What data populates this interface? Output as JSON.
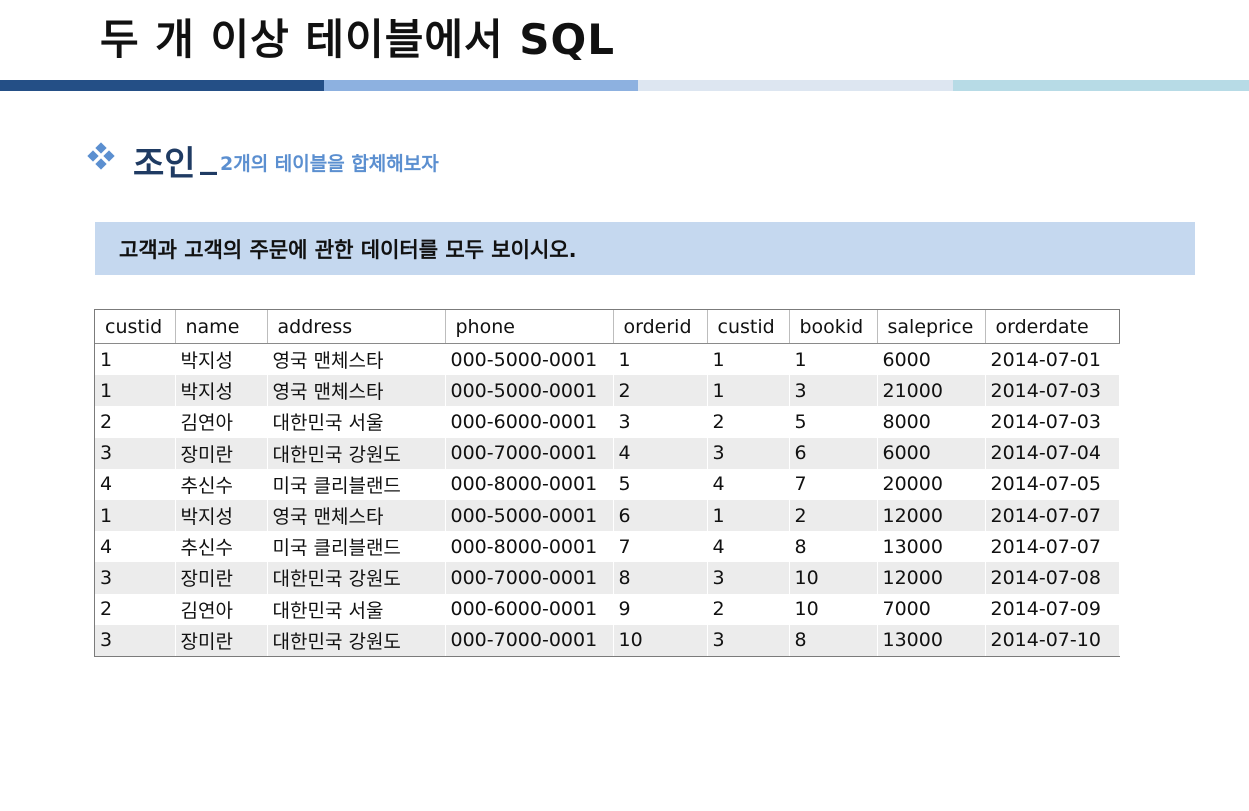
{
  "title": "두 개 이상 테이블에서 SQL",
  "section": {
    "heading": "조인",
    "separator": "_",
    "subtitle": "2개의 테이블을 합체해보자"
  },
  "prompt": "고객과 고객의 주문에 관한 데이터를 모두 보이시오.",
  "table": {
    "headers": [
      "custid",
      "name",
      "address",
      "phone",
      "orderid",
      "custid",
      "bookid",
      "saleprice",
      "orderdate"
    ],
    "rows": [
      [
        "1",
        "박지성",
        "영국 맨체스타",
        "000-5000-0001",
        "1",
        "1",
        "1",
        "6000",
        "2014-07-01"
      ],
      [
        "1",
        "박지성",
        "영국 맨체스타",
        "000-5000-0001",
        "2",
        "1",
        "3",
        "21000",
        "2014-07-03"
      ],
      [
        "2",
        "김연아",
        "대한민국 서울",
        "000-6000-0001",
        "3",
        "2",
        "5",
        "8000",
        "2014-07-03"
      ],
      [
        "3",
        "장미란",
        "대한민국 강원도",
        "000-7000-0001",
        "4",
        "3",
        "6",
        "6000",
        "2014-07-04"
      ],
      [
        "4",
        "추신수",
        "미국 클리블랜드",
        "000-8000-0001",
        "5",
        "4",
        "7",
        "20000",
        "2014-07-05"
      ],
      [
        "1",
        "박지성",
        "영국 맨체스타",
        "000-5000-0001",
        "6",
        "1",
        "2",
        "12000",
        "2014-07-07"
      ],
      [
        "4",
        "추신수",
        "미국 클리블랜드",
        "000-8000-0001",
        "7",
        "4",
        "8",
        "13000",
        "2014-07-07"
      ],
      [
        "3",
        "장미란",
        "대한민국 강원도",
        "000-7000-0001",
        "8",
        "3",
        "10",
        "12000",
        "2014-07-08"
      ],
      [
        "2",
        "김연아",
        "대한민국 서울",
        "000-6000-0001",
        "9",
        "2",
        "10",
        "7000",
        "2014-07-09"
      ],
      [
        "3",
        "장미란",
        "대한민국 강원도",
        "000-7000-0001",
        "10",
        "3",
        "8",
        "13000",
        "2014-07-10"
      ]
    ]
  },
  "colors": {
    "bar_dark": "#244f86",
    "bar_mid": "#8db1e0",
    "bar_light": "#dde6f1",
    "bar_teal": "#b7dbe6",
    "prompt_bg": "#c5d8ef",
    "heading": "#1f3b63",
    "accent": "#5b8fd0"
  },
  "icons": {
    "bullet": "four-diamond-bullet-icon"
  }
}
